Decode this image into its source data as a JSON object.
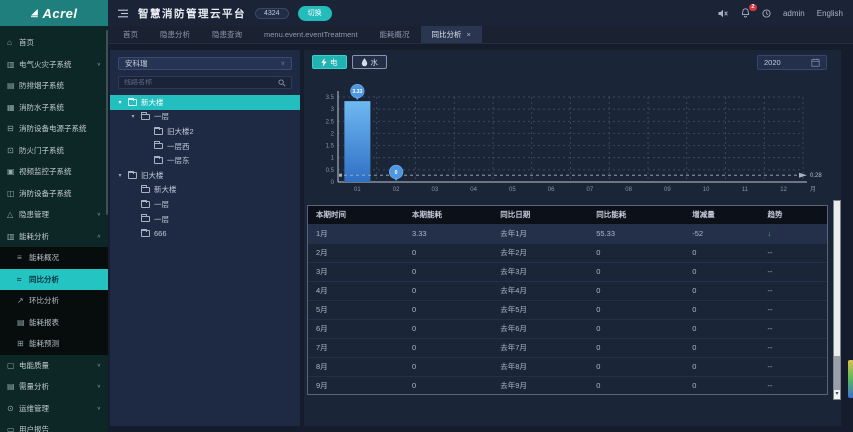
{
  "header": {
    "logo": "Acrel",
    "title": "智慧消防管理云平台",
    "badge": "4324",
    "switch_label": "切换",
    "notification_count": "2",
    "user": "admin",
    "language": "English"
  },
  "tabs": [
    {
      "label": "首页",
      "active": false,
      "closable": false
    },
    {
      "label": "隐患分析",
      "active": false,
      "closable": false
    },
    {
      "label": "隐患查询",
      "active": false,
      "closable": false
    },
    {
      "label": "menu.event.eventTreatment",
      "active": false,
      "closable": false
    },
    {
      "label": "能耗概况",
      "active": false,
      "closable": false
    },
    {
      "label": "同比分析",
      "active": true,
      "closable": true
    }
  ],
  "sidebar": {
    "items": [
      {
        "label": "首页",
        "icon": "home-icon"
      },
      {
        "label": "电气火灾子系统",
        "icon": "electrical-fire-icon",
        "chevron": "down"
      },
      {
        "label": "防排烟子系统",
        "icon": "smoke-icon"
      },
      {
        "label": "消防水子系统",
        "icon": "fire-water-icon"
      },
      {
        "label": "消防设备电源子系统",
        "icon": "equipment-power-icon"
      },
      {
        "label": "防火门子系统",
        "icon": "fire-door-icon"
      },
      {
        "label": "视频监控子系统",
        "icon": "video-icon"
      },
      {
        "label": "消防设备子系统",
        "icon": "fire-device-icon"
      },
      {
        "label": "隐患管理",
        "icon": "hazard-icon",
        "chevron": "down"
      },
      {
        "label": "能耗分析",
        "icon": "energy-icon",
        "chevron": "up",
        "expanded": true,
        "children": [
          {
            "label": "能耗概况",
            "icon": "overview-icon",
            "active": false
          },
          {
            "label": "同比分析",
            "icon": "yoy-icon",
            "active": true
          },
          {
            "label": "环比分析",
            "icon": "mom-icon",
            "active": false
          },
          {
            "label": "能耗报表",
            "icon": "report-icon",
            "active": false
          },
          {
            "label": "能耗预测",
            "icon": "forecast-icon",
            "active": false
          }
        ]
      },
      {
        "label": "电能质量",
        "icon": "power-quality-icon",
        "chevron": "down"
      },
      {
        "label": "需量分析",
        "icon": "demand-icon",
        "chevron": "down"
      },
      {
        "label": "运维管理",
        "icon": "ops-icon",
        "chevron": "down"
      },
      {
        "label": "用户报告",
        "icon": "user-report-icon"
      }
    ]
  },
  "tree_panel": {
    "dropdown_value": "安科瑞",
    "search_placeholder": "线路名称",
    "nodes": [
      {
        "label": "新大楼",
        "level": 0,
        "caret": true,
        "selected": true
      },
      {
        "label": "一层",
        "level": 1,
        "caret": true,
        "selected": false
      },
      {
        "label": "旧大楼2",
        "level": 2,
        "caret": false,
        "selected": false
      },
      {
        "label": "一层西",
        "level": 2,
        "caret": false,
        "selected": false
      },
      {
        "label": "一层东",
        "level": 2,
        "caret": false,
        "selected": false
      },
      {
        "label": "旧大楼",
        "level": 0,
        "caret": true,
        "selected": false
      },
      {
        "label": "新大楼",
        "level": 1,
        "caret": false,
        "selected": false
      },
      {
        "label": "一层",
        "level": 1,
        "caret": false,
        "selected": false
      },
      {
        "label": "一层",
        "level": 1,
        "caret": false,
        "selected": false
      },
      {
        "label": "666",
        "level": 1,
        "caret": false,
        "selected": false
      }
    ]
  },
  "toolbar": {
    "energy_types": [
      {
        "label": "电",
        "icon": "lightning-icon",
        "active": true
      },
      {
        "label": "水",
        "icon": "water-drop-icon",
        "active": false
      }
    ],
    "year": "2020"
  },
  "chart_data": {
    "type": "bar",
    "categories": [
      "01",
      "02",
      "03",
      "04",
      "05",
      "06",
      "07",
      "08",
      "09",
      "10",
      "11",
      "12"
    ],
    "values": [
      3.33,
      0,
      0,
      0,
      0,
      0,
      0,
      0,
      0,
      0,
      0,
      0
    ],
    "title": "",
    "xlabel": "月",
    "ylabel": "",
    "ylim": [
      0,
      3.5
    ],
    "ytick_step": 0.5,
    "grid": true,
    "average_line": 0.28,
    "mark_points": [
      {
        "category": "01",
        "label": "3.33"
      },
      {
        "category": "02",
        "label": "0"
      }
    ],
    "bar_color_top": "#6FB9F2",
    "bar_color_bottom": "#2F6FC4",
    "pin_color": "#4D96E0"
  },
  "table": {
    "columns": [
      "本期时间",
      "本期能耗",
      "同比日期",
      "同比能耗",
      "增减量",
      "趋势"
    ],
    "rows": [
      [
        "1月",
        "3.33",
        "去年1月",
        "55.33",
        "-52",
        "↓"
      ],
      [
        "2月",
        "0",
        "去年2月",
        "0",
        "0",
        "--"
      ],
      [
        "3月",
        "0",
        "去年3月",
        "0",
        "0",
        "--"
      ],
      [
        "4月",
        "0",
        "去年4月",
        "0",
        "0",
        "--"
      ],
      [
        "5月",
        "0",
        "去年5月",
        "0",
        "0",
        "--"
      ],
      [
        "6月",
        "0",
        "去年6月",
        "0",
        "0",
        "--"
      ],
      [
        "7月",
        "0",
        "去年7月",
        "0",
        "0",
        "--"
      ],
      [
        "8月",
        "0",
        "去年8月",
        "0",
        "0",
        "--"
      ],
      [
        "9月",
        "0",
        "去年9月",
        "0",
        "0",
        "--"
      ]
    ]
  }
}
